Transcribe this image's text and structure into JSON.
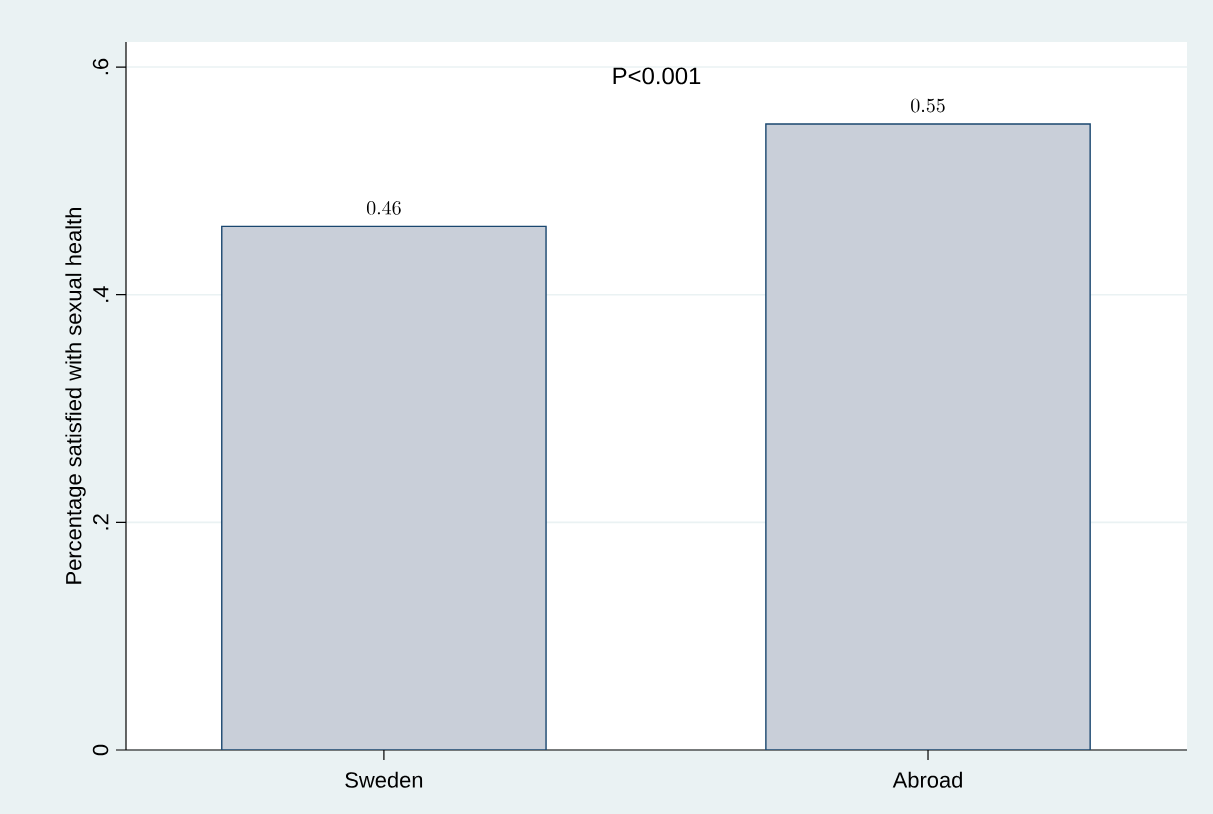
{
  "chart_data": {
    "type": "bar",
    "ylabel": "Percentage satisfied with sexual health",
    "categories": [
      "Sweden",
      "Abroad"
    ],
    "values": [
      0.46,
      0.55
    ],
    "color": "#c9cfd9",
    "ylim": [
      0,
      0.622
    ],
    "yticks": [
      0,
      {
        "value": 0.2,
        "label": ".2"
      },
      {
        "value": 0.4,
        "label": ".4"
      },
      {
        "value": 0.6,
        "label": ".6"
      }
    ],
    "grid": "y",
    "data_labels": true,
    "annotations": [
      "P<0.001"
    ]
  }
}
